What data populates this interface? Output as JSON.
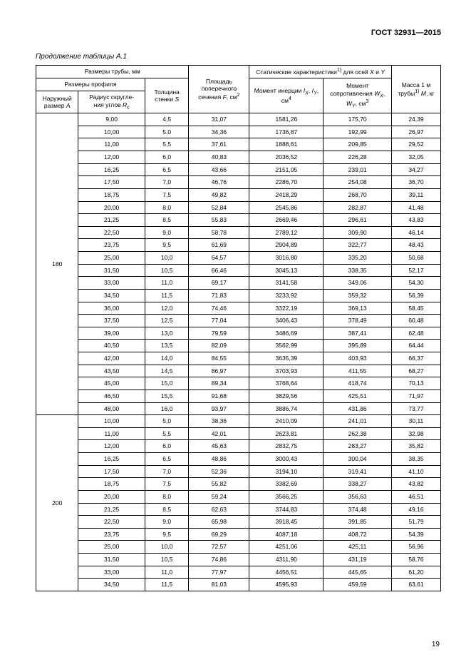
{
  "document_id": "ГОСТ 32931—2015",
  "continuation_label": "Продолжение таблицы А.1",
  "page_number": "19",
  "headers": {
    "dims": "Размеры трубы, мм",
    "profile": "Размеры профиля",
    "A": "Наружный размер A",
    "Rc": "Радиус скругле­ния углов R_c",
    "S": "Толщина стенки S",
    "F": "Площадь поперечного сечения F, см²",
    "stat": "Статические характеристики ¹⁾ для осей X и Y",
    "Ixy": "Момент инерции I_X, I_Y, см⁴",
    "Wxy": "Момент сопротивления W_X, W_Y, см³",
    "M": "Масса 1 м трубы ¹⁾ M, кг"
  },
  "groups": [
    {
      "A": "180",
      "rows": [
        [
          "9,00",
          "4,5",
          "31,07",
          "1581,26",
          "175,70",
          "24,39"
        ],
        [
          "10,00",
          "5,0",
          "34,36",
          "1736,87",
          "192,99",
          "26,97"
        ],
        [
          "11,00",
          "5,5",
          "37,61",
          "1888,61",
          "209,85",
          "29,52"
        ],
        [
          "12,00",
          "6,0",
          "40,83",
          "2036,52",
          "226,28",
          "32,05"
        ],
        [
          "16,25",
          "6,5",
          "43,66",
          "2151,05",
          "239,01",
          "34,27"
        ],
        [
          "17,50",
          "7,0",
          "46,76",
          "2286,70",
          "254,08",
          "36,70"
        ],
        [
          "18,75",
          "7,5",
          "49,82",
          "2418,29",
          "268,70",
          "39,11"
        ],
        [
          "20,00",
          "8,0",
          "52,84",
          "2545,86",
          "282,87",
          "41,48"
        ],
        [
          "21,25",
          "8,5",
          "55,83",
          "2669,46",
          "296,61",
          "43,83"
        ],
        [
          "22,50",
          "9,0",
          "58,78",
          "2789,12",
          "309,90",
          "46,14"
        ],
        [
          "23,75",
          "9,5",
          "61,69",
          "2904,89",
          "322,77",
          "48,43"
        ],
        [
          "25,00",
          "10,0",
          "64,57",
          "3016,80",
          "335,20",
          "50,68"
        ],
        [
          "31,50",
          "10,5",
          "66,46",
          "3045,13",
          "338,35",
          "52,17"
        ],
        [
          "33,00",
          "11,0",
          "69,17",
          "3141,58",
          "349,06",
          "54,30"
        ],
        [
          "34,50",
          "11,5",
          "71,83",
          "3233,92",
          "359,32",
          "56,39"
        ],
        [
          "36,00",
          "12,0",
          "74,46",
          "3322,19",
          "369,13",
          "58,45"
        ],
        [
          "37,50",
          "12,5",
          "77,04",
          "3406,43",
          "378,49",
          "60,48"
        ],
        [
          "39,00",
          "13,0",
          "79,59",
          "3486,69",
          "387,41",
          "62,48"
        ],
        [
          "40,50",
          "13,5",
          "82,09",
          "3562,99",
          "395,89",
          "64,44"
        ],
        [
          "42,00",
          "14,0",
          "84,55",
          "3635,39",
          "403,93",
          "66,37"
        ],
        [
          "43,50",
          "14,5",
          "86,97",
          "3703,93",
          "411,55",
          "68,27"
        ],
        [
          "45,00",
          "15,0",
          "89,34",
          "3768,64",
          "418,74",
          "70,13"
        ],
        [
          "46,50",
          "15,5",
          "91,68",
          "3829,56",
          "425,51",
          "71,97"
        ],
        [
          "48,00",
          "16,0",
          "93,97",
          "3886,74",
          "431,86",
          "73,77"
        ]
      ]
    },
    {
      "A": "200",
      "rows": [
        [
          "10,00",
          "5,0",
          "38,36",
          "2410,09",
          "241,01",
          "30,11"
        ],
        [
          "11,00",
          "5,5",
          "42,01",
          "2623,81",
          "262,38",
          "32,98"
        ],
        [
          "12,00",
          "6,0",
          "45,63",
          "2832,75",
          "283,27",
          "35,82"
        ],
        [
          "16,25",
          "6,5",
          "48,86",
          "3000,43",
          "300,04",
          "38,35"
        ],
        [
          "17,50",
          "7,0",
          "52,36",
          "3194,10",
          "319,41",
          "41,10"
        ],
        [
          "18,75",
          "7,5",
          "55,82",
          "3382,69",
          "338,27",
          "43,82"
        ],
        [
          "20,00",
          "8,0",
          "59,24",
          "3566,25",
          "356,63",
          "46,51"
        ],
        [
          "21,25",
          "8,5",
          "62,63",
          "3744,83",
          "374,48",
          "49,16"
        ],
        [
          "22,50",
          "9,0",
          "65,98",
          "3918,45",
          "391,85",
          "51,79"
        ],
        [
          "23,75",
          "9,5",
          "69,29",
          "4087,18",
          "408,72",
          "54,39"
        ],
        [
          "25,00",
          "10,0",
          "72,57",
          "4251,06",
          "425,11",
          "56,96"
        ],
        [
          "31,50",
          "10,5",
          "74,86",
          "4311,90",
          "431,19",
          "58,76"
        ],
        [
          "33,00",
          "11,0",
          "77,97",
          "4456,51",
          "445,65",
          "61,20"
        ],
        [
          "34,50",
          "11,5",
          "81,03",
          "4595,93",
          "459,59",
          "63,61"
        ]
      ]
    }
  ]
}
